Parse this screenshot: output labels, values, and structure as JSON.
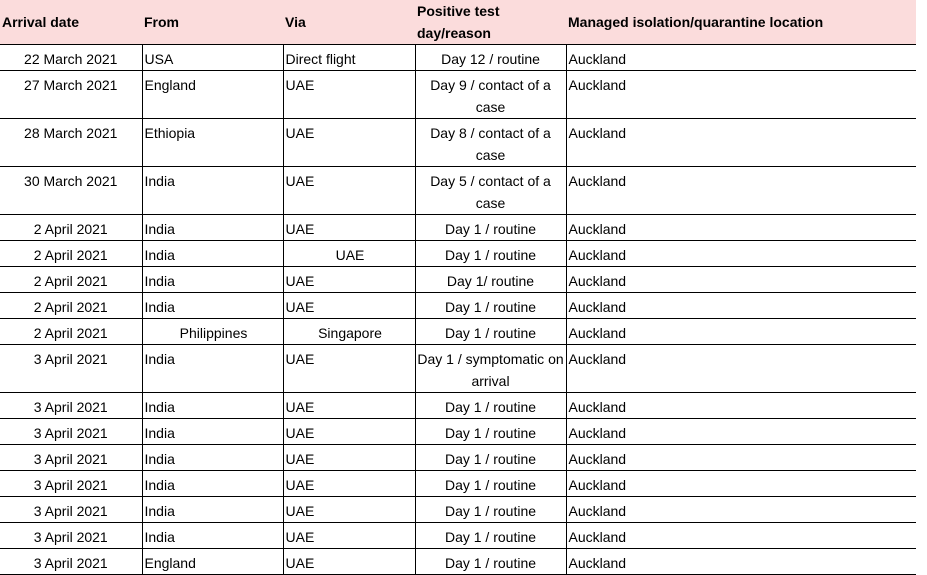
{
  "table": {
    "headers": {
      "arrival": "Arrival date",
      "from": "From",
      "via": "Via",
      "positive": "Positive test day/reason",
      "location": "Managed isolation/quarantine location"
    },
    "rows": [
      {
        "date": "22 March 2021",
        "from": "USA",
        "via": "Direct flight",
        "day": "Day 12 / routine",
        "loc": "Auckland"
      },
      {
        "date": "27 March 2021",
        "from": "England",
        "via": "UAE",
        "day": "Day 9 / contact of a case",
        "loc": "Auckland"
      },
      {
        "date": "28 March 2021",
        "from": "Ethiopia",
        "via": "UAE",
        "day": "Day 8 / contact of a case",
        "loc": "Auckland"
      },
      {
        "date": "30 March 2021",
        "from": "India",
        "via": "UAE",
        "day": "Day 5 / contact of a case",
        "loc": "Auckland"
      },
      {
        "date": "2 April 2021",
        "from": "India",
        "via": "UAE",
        "day": "Day 1 / routine",
        "loc": "Auckland"
      },
      {
        "date": "2 April 2021",
        "from": "India",
        "via": "UAE",
        "day": "Day 1 / routine",
        "loc": "Auckland"
      },
      {
        "date": "2 April 2021",
        "from": "India",
        "via": "UAE",
        "day": "Day 1/ routine",
        "loc": "Auckland"
      },
      {
        "date": "2 April 2021",
        "from": "India",
        "via": "UAE",
        "day": "Day 1 / routine",
        "loc": "Auckland"
      },
      {
        "date": "2 April 2021",
        "from": "Philippines",
        "via": "Singapore",
        "day": "Day 1 / routine",
        "loc": "Auckland"
      },
      {
        "date": "3 April 2021",
        "from": "India",
        "via": "UAE",
        "day": "Day 1 / symptomatic on arrival",
        "loc": "Auckland"
      },
      {
        "date": "3 April 2021",
        "from": "India",
        "via": "UAE",
        "day": "Day 1 / routine",
        "loc": "Auckland"
      },
      {
        "date": "3 April 2021",
        "from": "India",
        "via": "UAE",
        "day": "Day 1 / routine",
        "loc": "Auckland"
      },
      {
        "date": "3 April 2021",
        "from": "India",
        "via": "UAE",
        "day": "Day 1 / routine",
        "loc": "Auckland"
      },
      {
        "date": "3 April 2021",
        "from": "India",
        "via": "UAE",
        "day": "Day 1 / routine",
        "loc": "Auckland"
      },
      {
        "date": "3 April 2021",
        "from": "India",
        "via": "UAE",
        "day": "Day 1 / routine",
        "loc": "Auckland"
      },
      {
        "date": "3 April 2021",
        "from": "India",
        "via": "UAE",
        "day": "Day 1 / routine",
        "loc": "Auckland"
      },
      {
        "date": "3 April 2021",
        "from": "England",
        "via": "UAE",
        "day": "Day 1 / routine",
        "loc": "Auckland"
      }
    ]
  }
}
